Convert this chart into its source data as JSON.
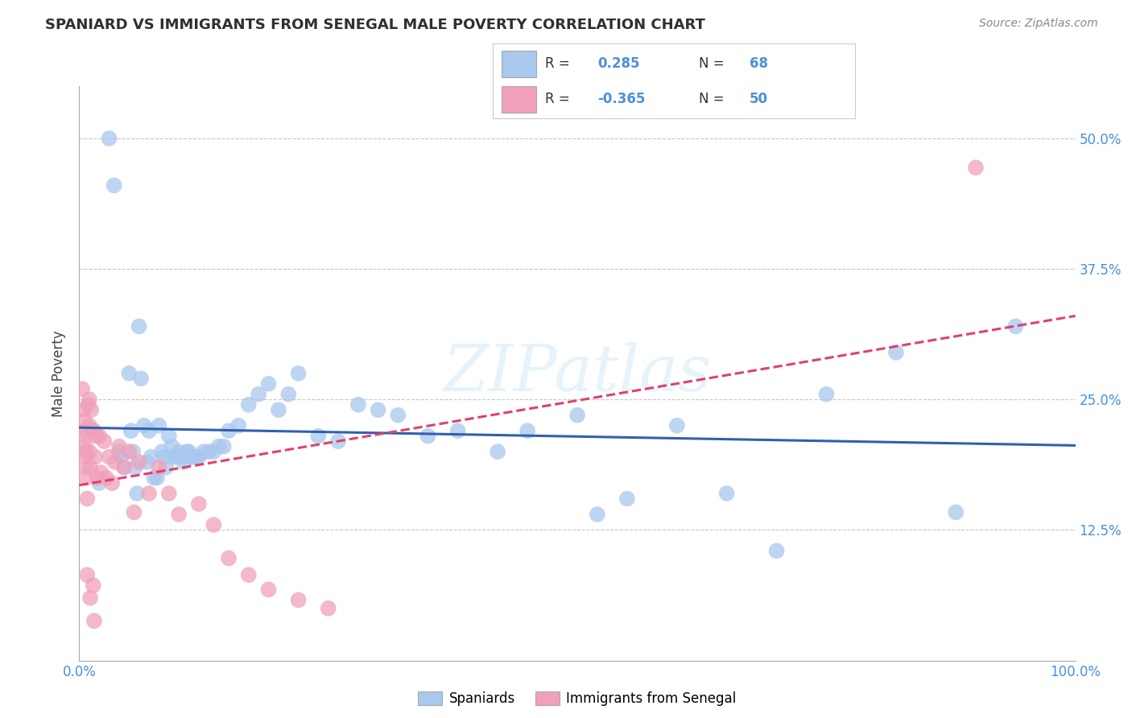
{
  "title": "SPANIARD VS IMMIGRANTS FROM SENEGAL MALE POVERTY CORRELATION CHART",
  "source": "Source: ZipAtlas.com",
  "ylabel": "Male Poverty",
  "xlim": [
    0.0,
    1.0
  ],
  "ylim": [
    0.0,
    0.55
  ],
  "y_tick_positions": [
    0.0,
    0.125,
    0.25,
    0.375,
    0.5
  ],
  "y_tick_labels": [
    "",
    "12.5%",
    "25.0%",
    "37.5%",
    "50.0%"
  ],
  "legend_label1": "Spaniards",
  "legend_label2": "Immigrants from Senegal",
  "R1": 0.285,
  "N1": 68,
  "R2": -0.365,
  "N2": 50,
  "color_blue": "#a8c8ee",
  "color_pink": "#f0a0b8",
  "line_color_blue": "#3060b0",
  "line_color_pink": "#e04070",
  "background_color": "#ffffff",
  "grid_color": "#c8c8c8",
  "watermark": "ZIPatlas",
  "title_color": "#303030",
  "source_color": "#888888",
  "tick_color": "#4a90d9",
  "spaniards_x": [
    0.02,
    0.03,
    0.035,
    0.04,
    0.042,
    0.045,
    0.05,
    0.052,
    0.054,
    0.056,
    0.058,
    0.06,
    0.062,
    0.065,
    0.068,
    0.07,
    0.072,
    0.075,
    0.078,
    0.08,
    0.083,
    0.085,
    0.087,
    0.09,
    0.093,
    0.095,
    0.098,
    0.1,
    0.103,
    0.105,
    0.108,
    0.11,
    0.112,
    0.115,
    0.118,
    0.12,
    0.125,
    0.13,
    0.135,
    0.14,
    0.145,
    0.15,
    0.16,
    0.17,
    0.18,
    0.19,
    0.2,
    0.21,
    0.22,
    0.24,
    0.26,
    0.28,
    0.3,
    0.32,
    0.35,
    0.38,
    0.42,
    0.45,
    0.5,
    0.52,
    0.55,
    0.6,
    0.65,
    0.7,
    0.75,
    0.82,
    0.88,
    0.94
  ],
  "spaniards_y": [
    0.17,
    0.5,
    0.455,
    0.2,
    0.195,
    0.185,
    0.275,
    0.22,
    0.2,
    0.185,
    0.16,
    0.32,
    0.27,
    0.225,
    0.19,
    0.22,
    0.195,
    0.175,
    0.175,
    0.225,
    0.2,
    0.195,
    0.185,
    0.215,
    0.205,
    0.195,
    0.195,
    0.2,
    0.195,
    0.19,
    0.2,
    0.2,
    0.195,
    0.195,
    0.195,
    0.195,
    0.2,
    0.2,
    0.2,
    0.205,
    0.205,
    0.22,
    0.225,
    0.245,
    0.255,
    0.265,
    0.24,
    0.255,
    0.275,
    0.215,
    0.21,
    0.245,
    0.24,
    0.235,
    0.215,
    0.22,
    0.2,
    0.22,
    0.235,
    0.14,
    0.155,
    0.225,
    0.16,
    0.105,
    0.255,
    0.295,
    0.142,
    0.32
  ],
  "senegal_x": [
    0.003,
    0.004,
    0.005,
    0.005,
    0.006,
    0.006,
    0.006,
    0.007,
    0.007,
    0.007,
    0.008,
    0.008,
    0.009,
    0.01,
    0.01,
    0.01,
    0.011,
    0.011,
    0.012,
    0.013,
    0.014,
    0.015,
    0.015,
    0.016,
    0.017,
    0.018,
    0.02,
    0.022,
    0.025,
    0.027,
    0.03,
    0.033,
    0.036,
    0.04,
    0.045,
    0.05,
    0.055,
    0.06,
    0.07,
    0.08,
    0.09,
    0.1,
    0.12,
    0.135,
    0.15,
    0.17,
    0.19,
    0.22,
    0.25,
    0.9
  ],
  "senegal_y": [
    0.26,
    0.24,
    0.23,
    0.22,
    0.215,
    0.205,
    0.2,
    0.195,
    0.185,
    0.175,
    0.155,
    0.082,
    0.245,
    0.25,
    0.225,
    0.2,
    0.185,
    0.06,
    0.24,
    0.22,
    0.072,
    0.038,
    0.22,
    0.195,
    0.215,
    0.175,
    0.215,
    0.18,
    0.21,
    0.175,
    0.195,
    0.17,
    0.19,
    0.205,
    0.185,
    0.2,
    0.142,
    0.19,
    0.16,
    0.185,
    0.16,
    0.14,
    0.15,
    0.13,
    0.098,
    0.082,
    0.068,
    0.058,
    0.05,
    0.472
  ]
}
